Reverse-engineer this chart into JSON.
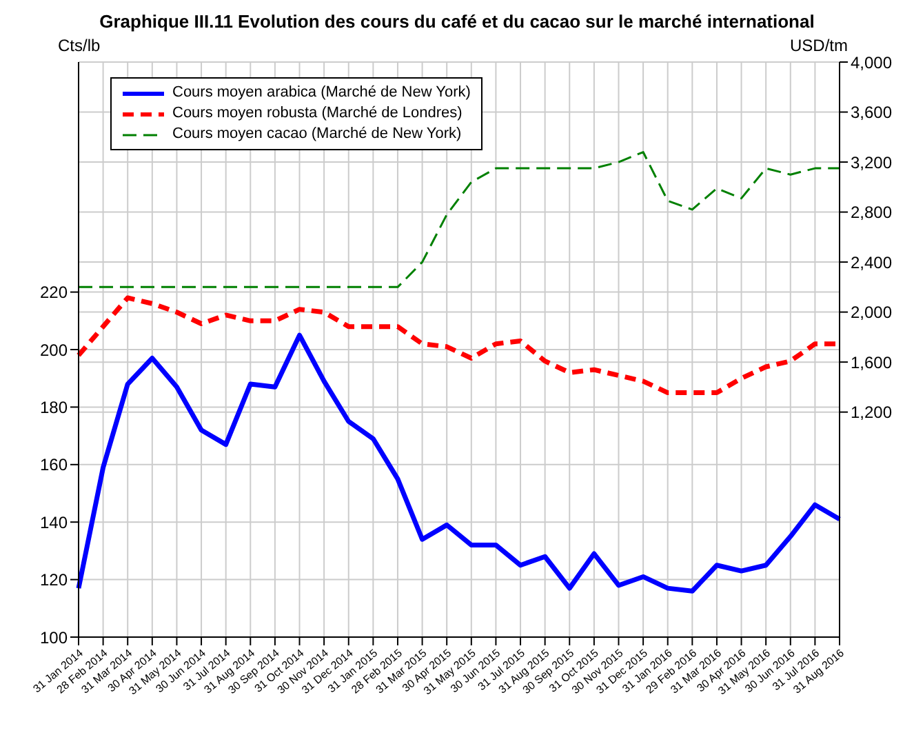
{
  "chart_data": {
    "type": "line",
    "title": "Graphique III.11 Evolution des cours du café et du cacao sur le marché international",
    "ylabel": "Cts/lb",
    "y2label": "USD/tm",
    "categories": [
      "31 Jan 2014",
      "28 Feb 2014",
      "31 Mar 2014",
      "30 Apr 2014",
      "31 May 2014",
      "30 Jun 2014",
      "31 Jul 2014",
      "31 Aug 2014",
      "30 Sep 2014",
      "31 Oct 2014",
      "30 Nov 2014",
      "31 Dec 2014",
      "31 Jan 2015",
      "28 Feb 2015",
      "31 Mar 2015",
      "30 Apr 2015",
      "31 May 2015",
      "30 Jun 2015",
      "31 Jul 2015",
      "31 Aug 2015",
      "30 Sep 2015",
      "31 Oct 2015",
      "30 Nov 2015",
      "31 Dec 2015",
      "31 Jan 2016",
      "29 Feb 2016",
      "31 Mar 2016",
      "30 Apr 2016",
      "31 May 2016",
      "30 Jun 2016",
      "31 Jul 2016",
      "31 Aug 2016"
    ],
    "series": [
      {
        "name": "Cours moyen arabica (Marché de New York)",
        "color": "#0000ff",
        "line_style": "solid",
        "values": [
          117,
          159,
          188,
          197,
          187,
          172,
          167,
          188,
          187,
          205,
          189,
          175,
          169,
          155,
          134,
          139,
          132,
          132,
          125,
          128,
          117,
          129,
          118,
          121,
          117,
          116,
          125,
          123,
          125,
          135,
          146,
          141
        ]
      },
      {
        "name": "Cours moyen robusta (Marché de Londres)",
        "color": "#ff0000",
        "line_style": "dashed",
        "values": [
          198,
          208,
          218,
          216,
          213,
          209,
          212,
          210,
          210,
          214,
          213,
          208,
          208,
          208,
          202,
          201,
          197,
          202,
          203,
          196,
          192,
          193,
          191,
          189,
          185,
          185,
          185,
          190,
          194,
          196,
          202,
          202
        ]
      },
      {
        "name": "Cours moyen cacao (Marché de New York)",
        "color": "#008000",
        "line_style": "dashed",
        "axis": "y2",
        "values": [
          2200,
          2200,
          2200,
          2200,
          2200,
          2200,
          2200,
          2200,
          2200,
          2200,
          2200,
          2200,
          2200,
          2200,
          2400,
          2780,
          3040,
          3150,
          3150,
          3150,
          3150,
          3150,
          3200,
          3280,
          2890,
          2820,
          2990,
          2910,
          3150,
          3100,
          3150,
          3150
        ]
      }
    ],
    "ylim": [
      100,
      300
    ],
    "yticks": [
      100,
      120,
      140,
      160,
      180,
      200,
      220
    ],
    "y2lim": [
      -600,
      4000
    ],
    "y2ticks": [
      {
        "value": 1200,
        "label": "1,200"
      },
      {
        "value": 1600,
        "label": "1,600"
      },
      {
        "value": 2000,
        "label": "2,000"
      },
      {
        "value": 2400,
        "label": "2,400"
      },
      {
        "value": 2800,
        "label": "2,800"
      },
      {
        "value": 3200,
        "label": "3,200"
      },
      {
        "value": 3600,
        "label": "3,600"
      },
      {
        "value": 4000,
        "label": "4,000"
      }
    ],
    "grid": true,
    "legend": "top left",
    "marker": "none"
  }
}
